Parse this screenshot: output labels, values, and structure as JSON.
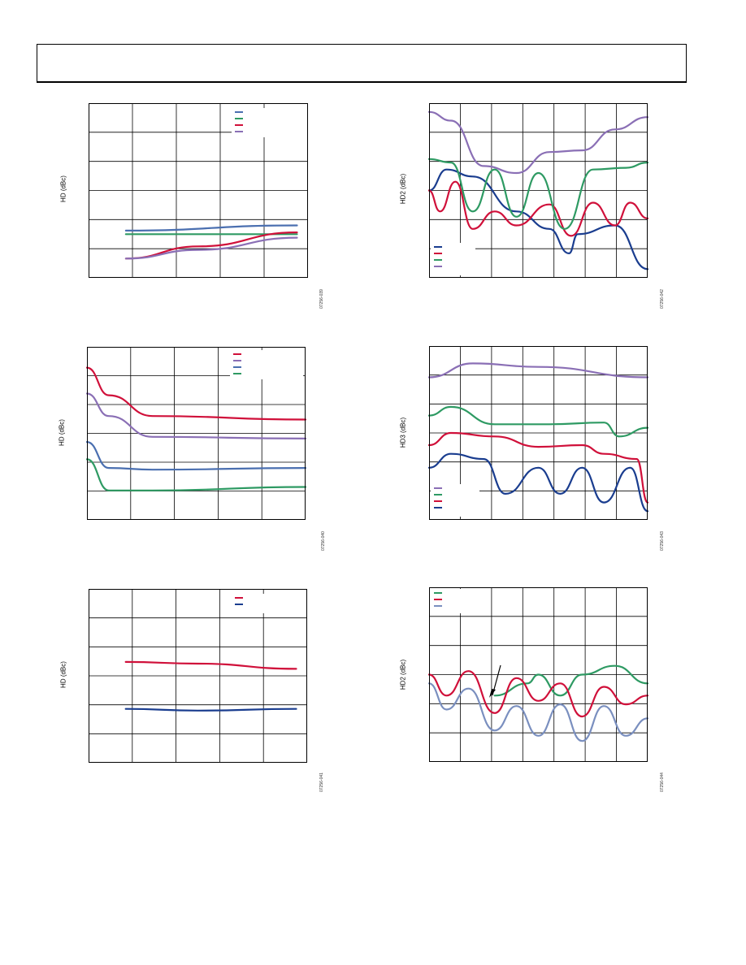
{
  "page": {
    "header": ""
  },
  "charts": [
    {
      "id": "c1",
      "ylabel": "HD (dBc)",
      "code": "07256-039"
    },
    {
      "id": "c2",
      "ylabel": "HD2 (dBc)",
      "code": "07256-042"
    },
    {
      "id": "c3",
      "ylabel": "HD (dBc)",
      "code": "07256-040"
    },
    {
      "id": "c4",
      "ylabel": "HD3 (dBc)",
      "code": "07256-043"
    },
    {
      "id": "c5",
      "ylabel": "HD (dBc)",
      "code": "07256-041"
    },
    {
      "id": "c6",
      "ylabel": "HD2 (dBc)",
      "code": "07256-044"
    }
  ],
  "colors": {
    "blue": "#1a3d8f",
    "red": "#d0103a",
    "green": "#2e9a63",
    "purple": "#8a6fb5",
    "steel": "#4a6fb0",
    "lightsteel": "#7a8fbf"
  },
  "chart_data": [
    {
      "type": "line",
      "id": "c1",
      "ylabel": "HD (dBc)",
      "x": [
        0,
        0.2,
        0.4,
        0.6,
        0.8,
        1
      ],
      "grid": true,
      "legend": "top-right",
      "series": [
        {
          "color": "#4a6fb0",
          "values": [
            [
              0.17,
              0.27
            ],
            [
              0.95,
              0.3
            ]
          ]
        },
        {
          "color": "#2e9a63",
          "values": [
            [
              0.17,
              0.25
            ],
            [
              0.95,
              0.25
            ]
          ]
        },
        {
          "color": "#d0103a",
          "values": [
            [
              0.17,
              0.11
            ],
            [
              0.5,
              0.18
            ],
            [
              0.95,
              0.26
            ]
          ]
        },
        {
          "color": "#8a6fb5",
          "values": [
            [
              0.17,
              0.11
            ],
            [
              0.5,
              0.16
            ],
            [
              0.95,
              0.23
            ]
          ]
        }
      ]
    },
    {
      "type": "line",
      "id": "c2",
      "ylabel": "HD2 (dBc)",
      "grid": true,
      "legend": "bottom-left",
      "series": [
        {
          "color": "#1a3d8f",
          "values": [
            [
              0,
              0.5
            ],
            [
              0.08,
              0.62
            ],
            [
              0.2,
              0.58
            ],
            [
              0.4,
              0.38
            ],
            [
              0.55,
              0.28
            ],
            [
              0.64,
              0.14
            ],
            [
              0.68,
              0.25
            ],
            [
              0.85,
              0.3
            ],
            [
              1,
              0.05
            ]
          ]
        },
        {
          "color": "#d0103a",
          "values": [
            [
              0,
              0.5
            ],
            [
              0.05,
              0.38
            ],
            [
              0.12,
              0.55
            ],
            [
              0.2,
              0.28
            ],
            [
              0.3,
              0.38
            ],
            [
              0.4,
              0.3
            ],
            [
              0.55,
              0.42
            ],
            [
              0.65,
              0.24
            ],
            [
              0.75,
              0.43
            ],
            [
              0.85,
              0.3
            ],
            [
              0.92,
              0.43
            ],
            [
              1,
              0.34
            ]
          ]
        },
        {
          "color": "#2e9a63",
          "values": [
            [
              0,
              0.68
            ],
            [
              0.1,
              0.66
            ],
            [
              0.2,
              0.38
            ],
            [
              0.3,
              0.62
            ],
            [
              0.4,
              0.35
            ],
            [
              0.5,
              0.6
            ],
            [
              0.62,
              0.28
            ],
            [
              0.75,
              0.62
            ],
            [
              0.9,
              0.63
            ],
            [
              1,
              0.66
            ]
          ]
        },
        {
          "color": "#8a6fb5",
          "values": [
            [
              0,
              0.95
            ],
            [
              0.1,
              0.9
            ],
            [
              0.25,
              0.64
            ],
            [
              0.4,
              0.6
            ],
            [
              0.55,
              0.72
            ],
            [
              0.7,
              0.73
            ],
            [
              0.85,
              0.85
            ],
            [
              1,
              0.92
            ]
          ]
        }
      ]
    },
    {
      "type": "line",
      "id": "c3",
      "ylabel": "HD (dBc)",
      "grid": true,
      "legend": "top-right",
      "series": [
        {
          "color": "#d0103a",
          "values": [
            [
              0,
              0.88
            ],
            [
              0.1,
              0.72
            ],
            [
              0.3,
              0.6
            ],
            [
              1,
              0.58
            ]
          ]
        },
        {
          "color": "#8a6fb5",
          "values": [
            [
              0,
              0.73
            ],
            [
              0.1,
              0.6
            ],
            [
              0.3,
              0.48
            ],
            [
              1,
              0.47
            ]
          ]
        },
        {
          "color": "#4a6fb0",
          "values": [
            [
              0,
              0.45
            ],
            [
              0.1,
              0.3
            ],
            [
              0.3,
              0.29
            ],
            [
              1,
              0.3
            ]
          ]
        },
        {
          "color": "#2e9a63",
          "values": [
            [
              0,
              0.35
            ],
            [
              0.1,
              0.17
            ],
            [
              0.3,
              0.17
            ],
            [
              1,
              0.19
            ]
          ]
        }
      ]
    },
    {
      "type": "line",
      "id": "c4",
      "ylabel": "HD3 (dBc)",
      "grid": true,
      "legend": "bottom-left",
      "series": [
        {
          "color": "#8a6fb5",
          "values": [
            [
              0,
              0.82
            ],
            [
              0.2,
              0.9
            ],
            [
              0.5,
              0.88
            ],
            [
              1,
              0.82
            ]
          ]
        },
        {
          "color": "#2e9a63",
          "values": [
            [
              0,
              0.6
            ],
            [
              0.1,
              0.65
            ],
            [
              0.3,
              0.55
            ],
            [
              0.55,
              0.55
            ],
            [
              0.8,
              0.56
            ],
            [
              0.87,
              0.48
            ],
            [
              1,
              0.53
            ]
          ]
        },
        {
          "color": "#d0103a",
          "values": [
            [
              0,
              0.43
            ],
            [
              0.1,
              0.5
            ],
            [
              0.3,
              0.48
            ],
            [
              0.5,
              0.42
            ],
            [
              0.7,
              0.43
            ],
            [
              0.8,
              0.38
            ],
            [
              0.95,
              0.35
            ],
            [
              1,
              0.1
            ]
          ]
        },
        {
          "color": "#1a3d8f",
          "values": [
            [
              0,
              0.3
            ],
            [
              0.1,
              0.38
            ],
            [
              0.25,
              0.35
            ],
            [
              0.35,
              0.15
            ],
            [
              0.5,
              0.3
            ],
            [
              0.6,
              0.15
            ],
            [
              0.7,
              0.3
            ],
            [
              0.8,
              0.1
            ],
            [
              0.92,
              0.3
            ],
            [
              1,
              0.05
            ]
          ]
        }
      ]
    },
    {
      "type": "line",
      "id": "c5",
      "ylabel": "HD (dBc)",
      "grid": true,
      "legend": "top-right",
      "series": [
        {
          "color": "#d0103a",
          "values": [
            [
              0.17,
              0.58
            ],
            [
              0.5,
              0.57
            ],
            [
              0.95,
              0.54
            ]
          ]
        },
        {
          "color": "#1a3d8f",
          "values": [
            [
              0.17,
              0.31
            ],
            [
              0.5,
              0.3
            ],
            [
              0.95,
              0.31
            ]
          ]
        }
      ]
    },
    {
      "type": "line",
      "id": "c6",
      "ylabel": "HD2 (dBc)",
      "grid": true,
      "legend": "top-left",
      "series": [
        {
          "color": "#2e9a63",
          "values": [
            [
              0.3,
              0.38
            ],
            [
              0.45,
              0.45
            ],
            [
              0.5,
              0.5
            ],
            [
              0.6,
              0.38
            ],
            [
              0.7,
              0.5
            ],
            [
              0.85,
              0.55
            ],
            [
              1,
              0.45
            ]
          ]
        },
        {
          "color": "#d0103a",
          "values": [
            [
              0,
              0.5
            ],
            [
              0.08,
              0.38
            ],
            [
              0.18,
              0.52
            ],
            [
              0.3,
              0.28
            ],
            [
              0.4,
              0.48
            ],
            [
              0.5,
              0.35
            ],
            [
              0.6,
              0.45
            ],
            [
              0.7,
              0.26
            ],
            [
              0.8,
              0.43
            ],
            [
              0.9,
              0.33
            ],
            [
              1,
              0.38
            ]
          ]
        },
        {
          "color": "#7a8fbf",
          "values": [
            [
              0,
              0.45
            ],
            [
              0.08,
              0.3
            ],
            [
              0.18,
              0.42
            ],
            [
              0.3,
              0.18
            ],
            [
              0.4,
              0.32
            ],
            [
              0.5,
              0.15
            ],
            [
              0.6,
              0.33
            ],
            [
              0.7,
              0.12
            ],
            [
              0.8,
              0.32
            ],
            [
              0.9,
              0.15
            ],
            [
              1,
              0.25
            ]
          ]
        }
      ]
    }
  ]
}
